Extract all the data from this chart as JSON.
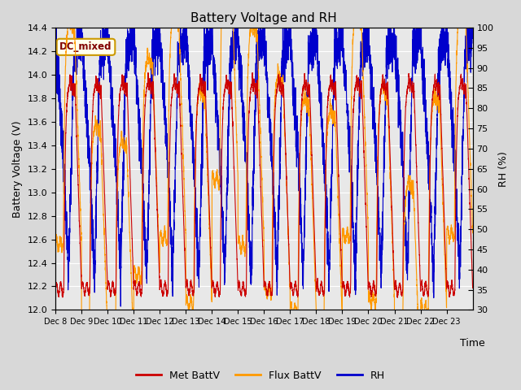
{
  "title": "Battery Voltage and RH",
  "xlabel": "Time",
  "ylabel_left": "Battery Voltage (V)",
  "ylabel_right": "RH (%)",
  "ylim_left": [
    12.0,
    14.4
  ],
  "ylim_right": [
    30,
    100
  ],
  "yticks_left": [
    12.0,
    12.2,
    12.4,
    12.6,
    12.8,
    13.0,
    13.2,
    13.4,
    13.6,
    13.8,
    14.0,
    14.2,
    14.4
  ],
  "yticks_right": [
    30,
    35,
    40,
    45,
    50,
    55,
    60,
    65,
    70,
    75,
    80,
    85,
    90,
    95,
    100
  ],
  "color_met": "#cc0000",
  "color_flux": "#ff9900",
  "color_rh": "#0000cc",
  "annotation_text": "DC_mixed",
  "annotation_color": "#800000",
  "annotation_bg": "#ffffee",
  "annotation_border": "#cc9900",
  "fig_facecolor": "#d8d8d8",
  "axes_facecolor": "#e8e8e8",
  "x_tick_labels": [
    "Dec 8",
    "Dec 9",
    "Dec 10",
    "Dec 11",
    "Dec 12",
    "Dec 13",
    "Dec 14",
    "Dec 15",
    "Dec 16",
    "Dec 17",
    "Dec 18",
    "Dec 19",
    "Dec 20",
    "Dec 21",
    "Dec 22",
    "Dec 23"
  ],
  "line_width": 0.8,
  "legend_labels": [
    "Met BattV",
    "Flux BattV",
    "RH"
  ],
  "legend_colors": [
    "#cc0000",
    "#ff9900",
    "#0000cc"
  ]
}
